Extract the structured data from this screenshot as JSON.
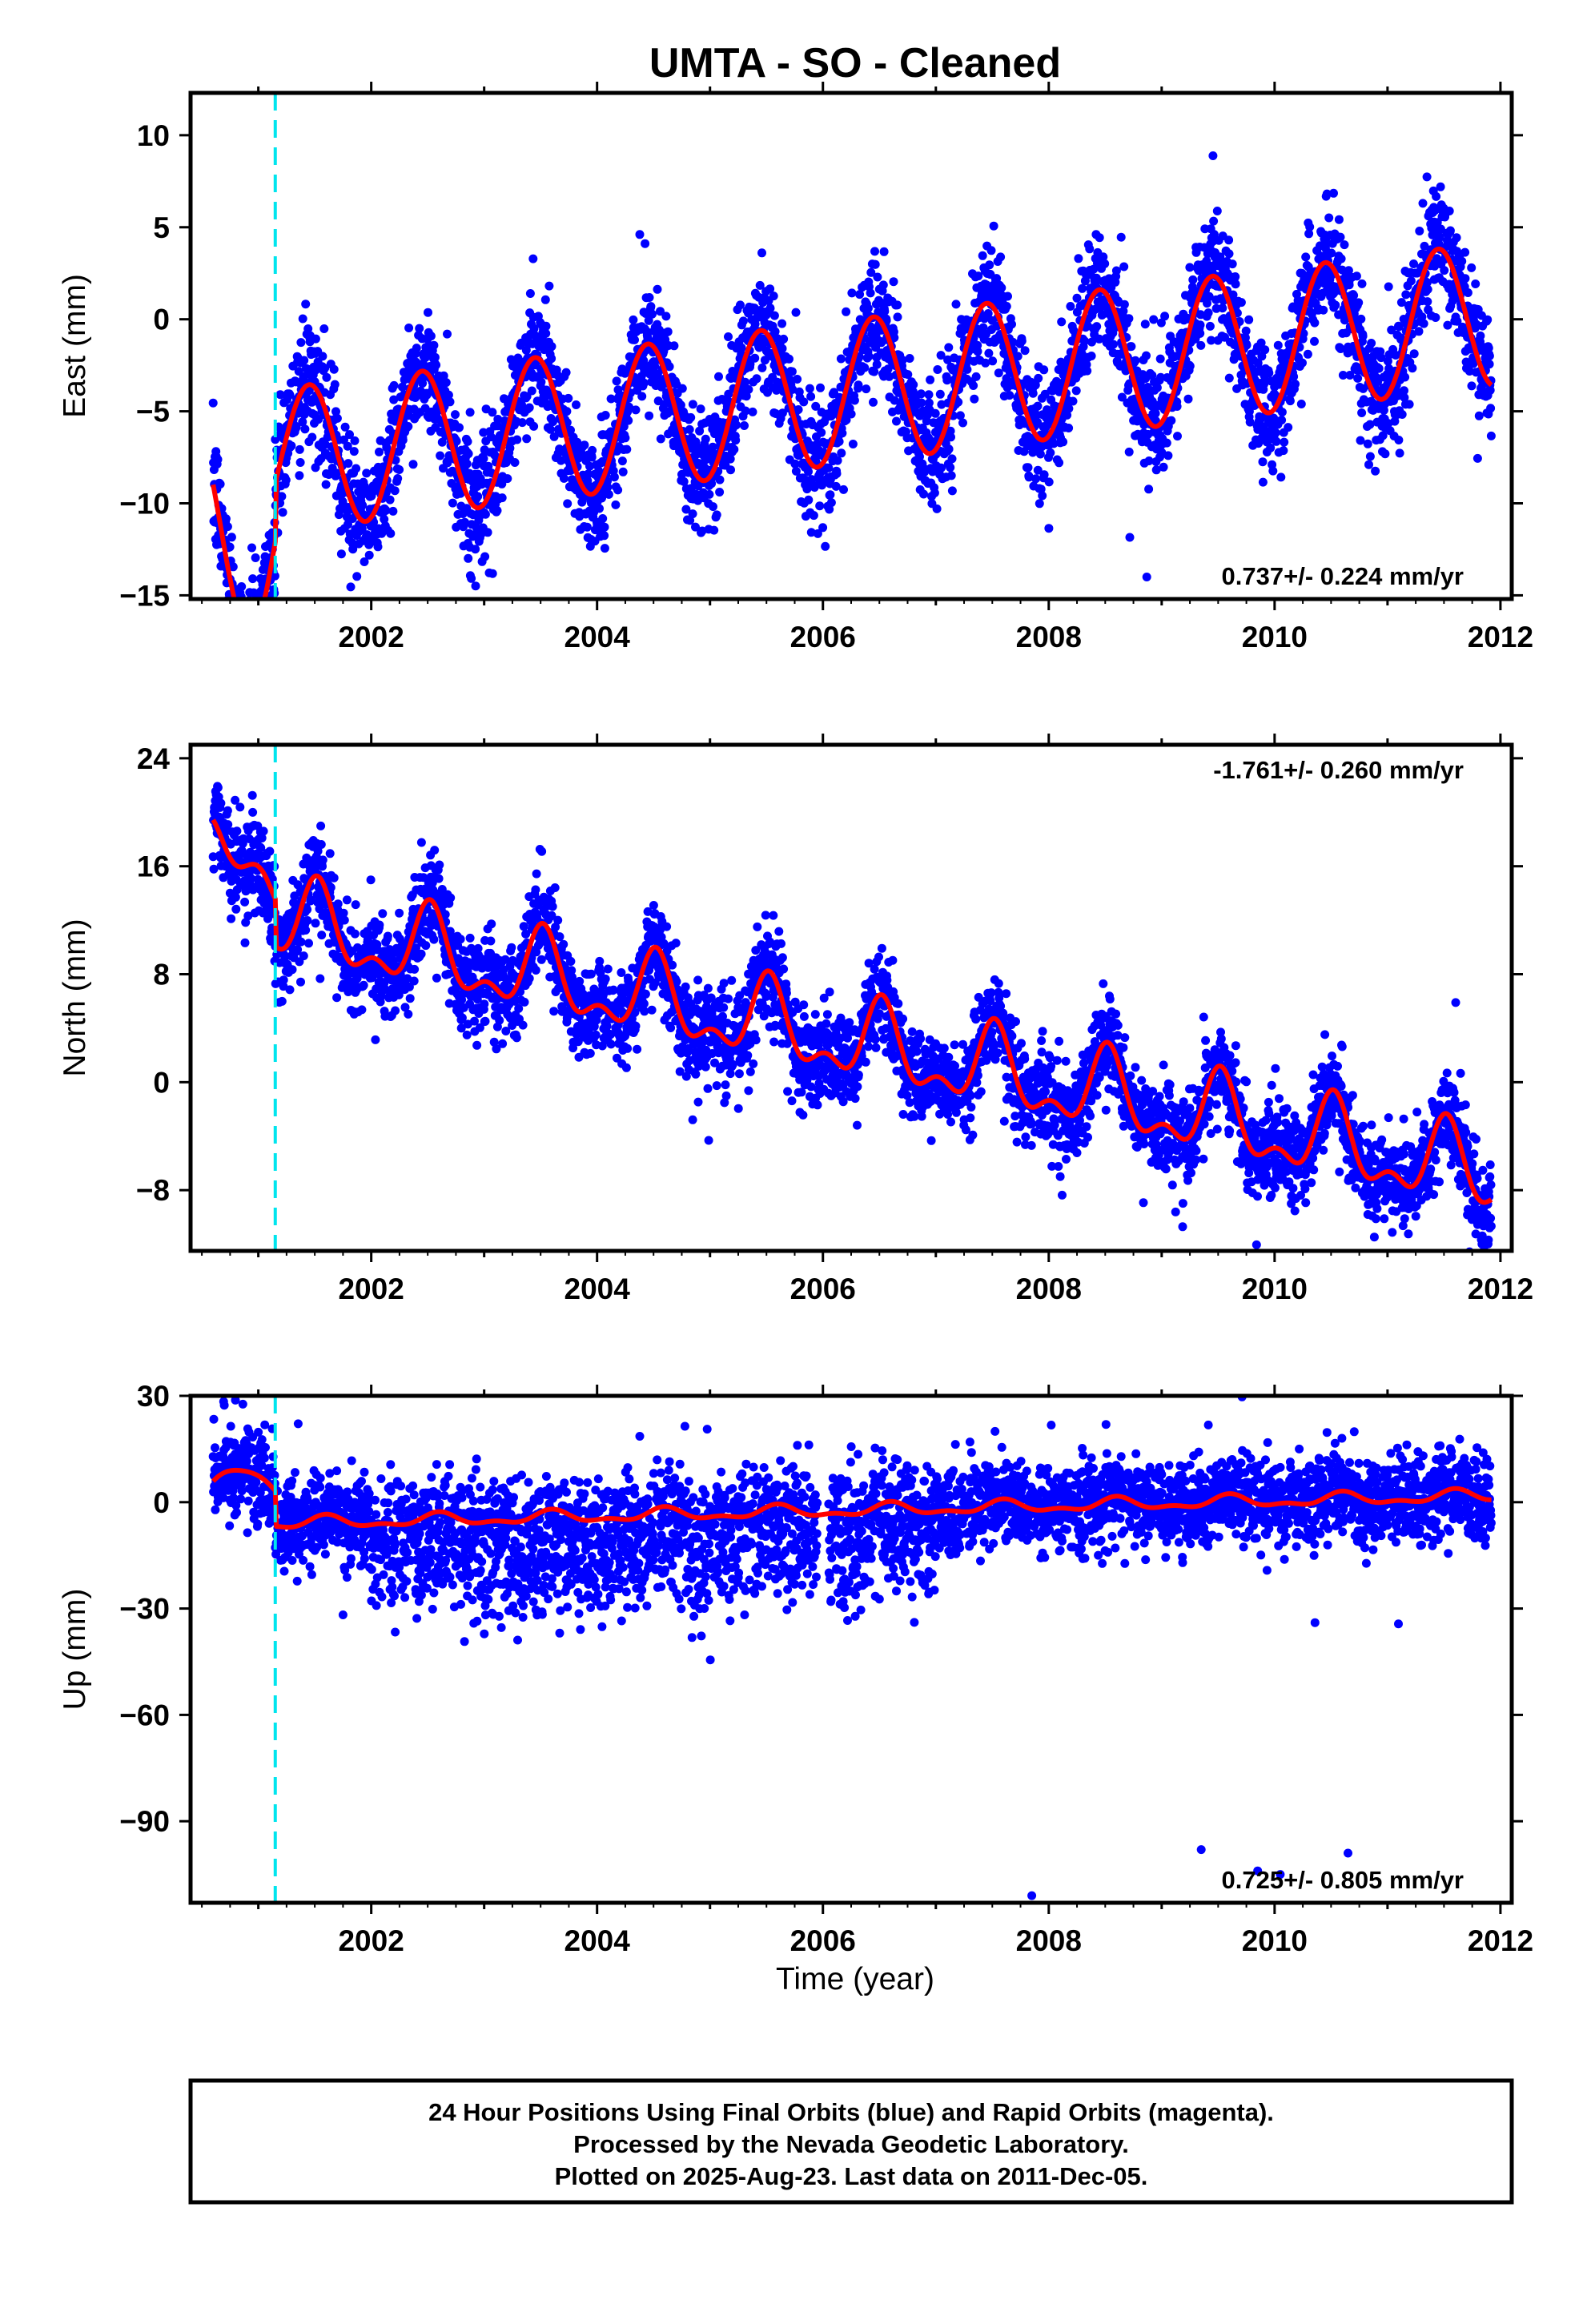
{
  "title": "UMTA  - SO - Cleaned",
  "colors": {
    "points": "#0000ff",
    "model": "#ff0000",
    "offset_line": "#00e5ee",
    "frame": "#000000"
  },
  "chart_data": [
    {
      "type": "scatter",
      "panel": "east",
      "title": "",
      "xlabel": "",
      "ylabel": "East (mm)",
      "xlim": [
        2000.4,
        2012.1
      ],
      "ylim": [
        -15.2,
        12.3
      ],
      "x_ticks": [
        2002,
        2004,
        2006,
        2008,
        2010,
        2012
      ],
      "y_ticks": [
        10,
        5,
        0,
        -5,
        -10,
        -15
      ],
      "y_tick_labels": [
        "10",
        "5",
        "0",
        "−5",
        "−10",
        "−15"
      ],
      "rate_label": "0.737+/- 0.224 mm/yr",
      "rate_position": "bottom-right",
      "offset_epoch": 2001.15,
      "grid": false,
      "data_range": [
        2000.6,
        2011.92
      ],
      "model": {
        "intercept": -4.1,
        "trend": 0.737,
        "trend_ref": 2006.0,
        "amplitude": 3.9,
        "phase_peak": 0.45,
        "semi_amplitude": 0.0,
        "offset": 3.2,
        "start_hump": [
          2000.6,
          2001.15,
          -2.3
        ]
      },
      "series": [
        {
          "name": "",
          "kind": "daily positions",
          "noise_sd": 1.6
        },
        {
          "name": "",
          "kind": "model fit"
        }
      ]
    },
    {
      "type": "scatter",
      "panel": "north",
      "title": "",
      "xlabel": "",
      "ylabel": "North (mm)",
      "xlim": [
        2000.4,
        2012.1
      ],
      "ylim": [
        -12.5,
        25.0
      ],
      "x_ticks": [
        2002,
        2004,
        2006,
        2008,
        2010,
        2012
      ],
      "y_ticks": [
        24,
        16,
        8,
        0,
        -8
      ],
      "y_tick_labels": [
        "24",
        "16",
        "8",
        "0",
        "−8"
      ],
      "rate_label": "-1.761+/- 0.260 mm/yr",
      "rate_position": "top-right",
      "offset_epoch": 2001.15,
      "grid": false,
      "data_range": [
        2000.6,
        2011.92
      ],
      "model": {
        "intercept": 3.4,
        "trend": -1.761,
        "trend_ref": 2006.0,
        "amplitude": 2.6,
        "phase_peak": 0.52,
        "semi_amplitude": 1.4,
        "offset": -3.5,
        "start_hump": [
          2000.6,
          2001.15,
          2.0
        ]
      },
      "series": [
        {
          "name": "",
          "kind": "daily positions",
          "noise_sd": 1.7
        },
        {
          "name": "",
          "kind": "model fit"
        }
      ]
    },
    {
      "type": "scatter",
      "panel": "up",
      "title": "",
      "xlabel": "Time (year)",
      "ylabel": "Up (mm)",
      "xlim": [
        2000.4,
        2012.1
      ],
      "ylim": [
        -113.0,
        30.0
      ],
      "x_ticks": [
        2002,
        2004,
        2006,
        2008,
        2010,
        2012
      ],
      "y_ticks": [
        30,
        0,
        -30,
        -60,
        -90
      ],
      "y_tick_labels": [
        "30",
        "0",
        "−30",
        "−60",
        "−90"
      ],
      "rate_label": "0.725+/- 0.805 mm/yr",
      "rate_position": "bottom-right",
      "offset_epoch": 2001.15,
      "grid": false,
      "data_range": [
        2000.6,
        2011.92
      ],
      "model": {
        "intercept": -2.5,
        "trend": 0.725,
        "trend_ref": 2006.0,
        "amplitude": 1.5,
        "phase_peak": 0.6,
        "semi_amplitude": 0.8,
        "offset": -10.0,
        "start_hump": [
          2000.6,
          2001.15,
          6.0
        ]
      },
      "outliers": [
        [
          2009.35,
          -98
        ],
        [
          2009.85,
          -104
        ],
        [
          2010.05,
          -105
        ],
        [
          2010.65,
          -99
        ],
        [
          2007.85,
          -111
        ]
      ],
      "series": [
        {
          "name": "",
          "kind": "daily positions",
          "noise_sd": 6.0
        },
        {
          "name": "",
          "kind": "model fit"
        }
      ]
    }
  ],
  "footer": {
    "line1": "24 Hour Positions Using Final Orbits (blue) and Rapid Orbits (magenta).",
    "line2": "Processed by the Nevada Geodetic Laboratory.",
    "line3": "Plotted on 2025-Aug-23. Last data on 2011-Dec-05."
  }
}
